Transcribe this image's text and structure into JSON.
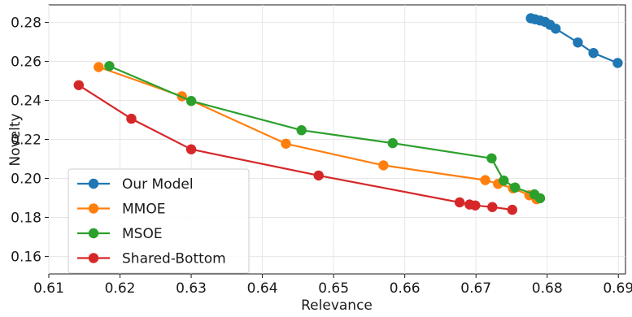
{
  "chart_data": {
    "type": "line",
    "xlabel": "Relevance",
    "ylabel": "Novelty",
    "xlim": [
      0.61,
      0.691
    ],
    "ylim": [
      0.151,
      0.289
    ],
    "x_ticks": [
      0.61,
      0.62,
      0.63,
      0.64,
      0.65,
      0.66,
      0.67,
      0.68,
      0.69
    ],
    "y_ticks": [
      0.16,
      0.18,
      0.2,
      0.22,
      0.24,
      0.26,
      0.28
    ],
    "x_tick_labels": [
      "0.61",
      "0.62",
      "0.63",
      "0.64",
      "0.65",
      "0.66",
      "0.67",
      "0.68",
      "0.69"
    ],
    "y_tick_labels": [
      "0.16",
      "0.18",
      "0.20",
      "0.22",
      "0.24",
      "0.26",
      "0.28"
    ],
    "grid": true,
    "legend_position": "bottom-left",
    "series": [
      {
        "name": "Our Model",
        "color": "#1f77b4",
        "points": [
          [
            0.6777,
            0.2821
          ],
          [
            0.6783,
            0.2816
          ],
          [
            0.679,
            0.281
          ],
          [
            0.6797,
            0.2803
          ],
          [
            0.6804,
            0.2788
          ],
          [
            0.6812,
            0.2768
          ],
          [
            0.6843,
            0.2697
          ],
          [
            0.6865,
            0.2643
          ],
          [
            0.6899,
            0.2592
          ]
        ]
      },
      {
        "name": "MMOE",
        "color": "#ff7f0e",
        "points": [
          [
            0.617,
            0.2571
          ],
          [
            0.6287,
            0.2421
          ],
          [
            0.6433,
            0.2178
          ],
          [
            0.657,
            0.2067
          ],
          [
            0.6713,
            0.1991
          ],
          [
            0.6731,
            0.1972
          ],
          [
            0.6752,
            0.1949
          ],
          [
            0.6775,
            0.1913
          ],
          [
            0.6785,
            0.1893
          ]
        ]
      },
      {
        "name": "MSOE",
        "color": "#2ca02c",
        "points": [
          [
            0.6185,
            0.2576
          ],
          [
            0.63,
            0.2397
          ],
          [
            0.6455,
            0.2247
          ],
          [
            0.6583,
            0.2181
          ],
          [
            0.6722,
            0.2103
          ],
          [
            0.6739,
            0.1989
          ],
          [
            0.6755,
            0.1953
          ],
          [
            0.6782,
            0.1918
          ],
          [
            0.679,
            0.1898
          ]
        ]
      },
      {
        "name": "Shared-Bottom",
        "color": "#d62728",
        "points": [
          [
            0.6142,
            0.2478
          ],
          [
            0.6216,
            0.2306
          ],
          [
            0.63,
            0.2149
          ],
          [
            0.6479,
            0.2015
          ],
          [
            0.6677,
            0.1877
          ],
          [
            0.6691,
            0.1866
          ],
          [
            0.6699,
            0.1861
          ],
          [
            0.6723,
            0.1853
          ],
          [
            0.6751,
            0.1839
          ]
        ]
      }
    ]
  }
}
